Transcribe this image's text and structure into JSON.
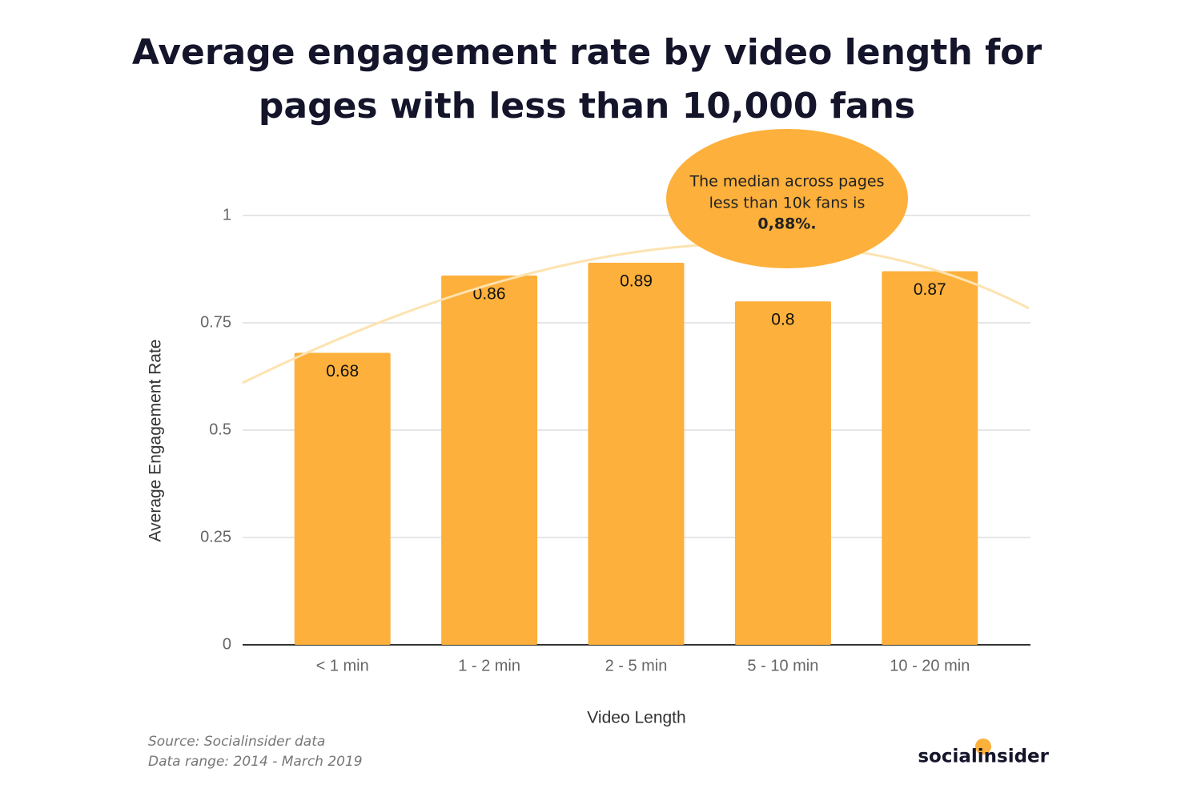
{
  "chart_data": {
    "type": "bar",
    "title": [
      "Average engagement rate by video length for",
      "pages with less than 10,000 fans"
    ],
    "x_label": "Video Length",
    "y_label": "Average Engagement Rate",
    "categories": [
      "< 1 min",
      "1 - 2 min",
      "2 - 5 min",
      "5 - 10 min",
      "10 - 20 min"
    ],
    "values": [
      0.68,
      0.86,
      0.89,
      0.8,
      0.87
    ],
    "color": "#fdb03b",
    "ylim": [
      0,
      1
    ],
    "yticks": [
      0,
      0.25,
      0.5,
      0.75,
      1
    ],
    "grid": true,
    "annotation": [
      "The median across pages",
      "less than 10k fans is",
      "0,88%."
    ],
    "source": [
      "Source: Socialinsider data",
      "Data range: 2014 - March 2019"
    ],
    "brand": "socialinsider"
  }
}
